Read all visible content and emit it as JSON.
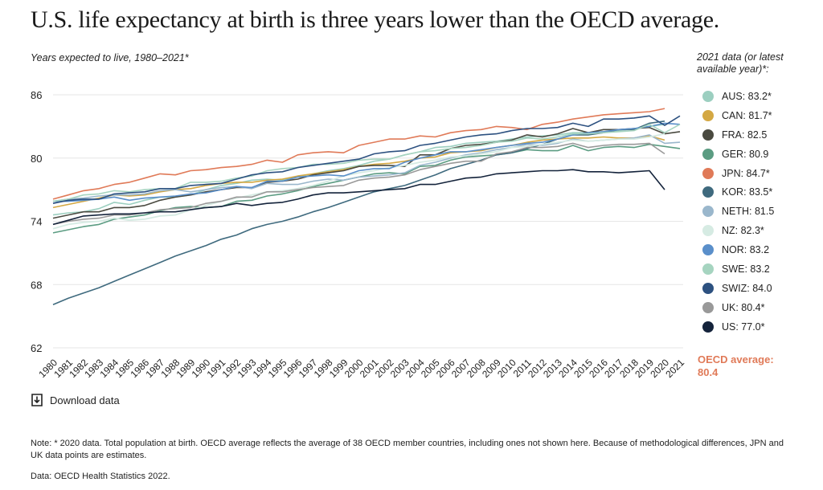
{
  "header": {
    "title": "U.S. life expectancy at birth is three years lower than the OECD average.",
    "subtitle": "Years expected to live, 1980–2021*",
    "legend_heading": "2021 data (or latest available year)*:"
  },
  "oecd_average": {
    "label": "OECD average:",
    "value": "80.4",
    "color": "#e07a58"
  },
  "download": {
    "label": "Download data",
    "icon": "download-icon"
  },
  "footer": {
    "note": "Note: * 2020 data. Total population at birth. OECD average reflects the average of 38 OECD member countries, including ones not shown here. Because of methodological differences, JPN and UK data points are estimates.",
    "source": "Data: OECD Health Statistics 2022."
  },
  "chart_data": {
    "type": "line",
    "x": [
      1980,
      1981,
      1982,
      1983,
      1984,
      1985,
      1986,
      1987,
      1988,
      1989,
      1990,
      1991,
      1992,
      1993,
      1994,
      1995,
      1996,
      1997,
      1998,
      1999,
      2000,
      2001,
      2002,
      2003,
      2004,
      2005,
      2006,
      2007,
      2008,
      2009,
      2010,
      2011,
      2012,
      2013,
      2014,
      2015,
      2016,
      2017,
      2018,
      2019,
      2020,
      2021
    ],
    "yticks": [
      62,
      68,
      74,
      80,
      86
    ],
    "ylim": [
      62,
      86.5
    ],
    "xlim": [
      1980,
      2021
    ],
    "grid": true,
    "legend_position": "right",
    "series": [
      {
        "name": "AUS: 83.2*",
        "color": "#9ccfc0",
        "values": [
          74.6,
          74.8,
          74.9,
          75.2,
          75.8,
          75.6,
          76.0,
          76.3,
          76.3,
          76.5,
          77.0,
          77.4,
          77.6,
          77.9,
          78.0,
          77.9,
          78.2,
          78.5,
          78.8,
          79.0,
          79.3,
          79.7,
          79.9,
          80.3,
          80.6,
          81.0,
          81.1,
          81.4,
          81.5,
          81.6,
          81.8,
          82.0,
          82.1,
          82.2,
          82.4,
          82.4,
          82.5,
          82.6,
          82.8,
          83.0,
          83.2,
          null
        ]
      },
      {
        "name": "CAN: 81.7*",
        "color": "#d4a843",
        "values": [
          75.3,
          75.6,
          75.9,
          76.2,
          76.5,
          76.4,
          76.5,
          76.8,
          77.0,
          77.1,
          77.4,
          77.6,
          77.7,
          77.7,
          77.9,
          78.0,
          78.3,
          78.5,
          78.7,
          78.9,
          79.2,
          79.4,
          79.5,
          79.7,
          80.0,
          80.1,
          80.5,
          80.6,
          80.7,
          81.0,
          81.2,
          81.5,
          81.7,
          81.8,
          81.9,
          81.9,
          82.0,
          81.9,
          81.9,
          82.1,
          81.7,
          null
        ]
      },
      {
        "name": "FRA: 82.5",
        "color": "#4a4a40",
        "values": [
          74.3,
          74.6,
          74.9,
          74.9,
          75.3,
          75.3,
          75.5,
          76.0,
          76.3,
          76.5,
          76.8,
          77.0,
          77.2,
          77.2,
          77.7,
          77.8,
          78.0,
          78.4,
          78.6,
          78.8,
          79.2,
          79.3,
          79.3,
          79.2,
          80.3,
          80.3,
          80.9,
          81.2,
          81.3,
          81.5,
          81.7,
          82.2,
          82.0,
          82.3,
          82.8,
          82.4,
          82.7,
          82.7,
          82.8,
          82.9,
          82.3,
          82.5
        ]
      },
      {
        "name": "GER: 80.9",
        "color": "#5b9c82",
        "values": [
          72.9,
          73.2,
          73.5,
          73.7,
          74.2,
          74.4,
          74.6,
          75.0,
          75.3,
          75.4,
          75.3,
          75.4,
          75.9,
          76.0,
          76.4,
          76.6,
          76.9,
          77.3,
          77.6,
          77.9,
          78.2,
          78.5,
          78.6,
          78.5,
          79.2,
          79.3,
          79.8,
          80.1,
          80.2,
          80.3,
          80.5,
          80.8,
          80.7,
          80.7,
          81.2,
          80.7,
          81.0,
          81.1,
          81.0,
          81.3,
          81.1,
          80.9
        ]
      },
      {
        "name": "JPN: 84.7*",
        "color": "#e07a58",
        "values": [
          76.1,
          76.5,
          76.9,
          77.1,
          77.5,
          77.7,
          78.1,
          78.5,
          78.4,
          78.8,
          78.9,
          79.1,
          79.2,
          79.4,
          79.8,
          79.6,
          80.3,
          80.5,
          80.6,
          80.5,
          81.2,
          81.5,
          81.8,
          81.8,
          82.1,
          82.0,
          82.4,
          82.6,
          82.7,
          83.0,
          82.9,
          82.7,
          83.2,
          83.4,
          83.7,
          83.9,
          84.1,
          84.2,
          84.3,
          84.4,
          84.7,
          null
        ]
      },
      {
        "name": "KOR: 83.5*",
        "color": "#3f6a7e",
        "values": [
          66.1,
          66.7,
          67.2,
          67.7,
          68.3,
          68.9,
          69.5,
          70.1,
          70.7,
          71.2,
          71.7,
          72.3,
          72.7,
          73.3,
          73.7,
          74.0,
          74.4,
          74.9,
          75.3,
          75.8,
          76.3,
          76.8,
          77.1,
          77.4,
          77.9,
          78.4,
          79.0,
          79.4,
          79.8,
          80.3,
          80.5,
          80.9,
          81.3,
          81.8,
          82.2,
          82.2,
          82.4,
          82.7,
          82.7,
          83.3,
          83.5,
          null
        ]
      },
      {
        "name": "NETH: 81.5",
        "color": "#9ab7cc",
        "values": [
          75.9,
          76.1,
          76.2,
          76.4,
          76.5,
          76.5,
          76.6,
          76.9,
          77.0,
          76.8,
          77.0,
          77.2,
          77.3,
          77.1,
          77.6,
          77.5,
          77.5,
          77.8,
          78.0,
          77.9,
          78.2,
          78.3,
          78.4,
          78.6,
          79.3,
          79.6,
          80.0,
          80.3,
          80.5,
          80.8,
          81.0,
          81.3,
          81.2,
          81.4,
          81.8,
          81.6,
          81.7,
          81.8,
          81.9,
          82.2,
          81.4,
          81.5
        ]
      },
      {
        "name": "NZ: 82.3*",
        "color": "#d6ebe3",
        "values": [
          73.3,
          73.7,
          73.9,
          74.0,
          74.3,
          74.1,
          74.2,
          74.5,
          74.6,
          75.1,
          75.5,
          75.9,
          76.2,
          76.5,
          76.8,
          76.9,
          77.1,
          77.4,
          77.8,
          78.3,
          78.6,
          78.8,
          79.1,
          79.3,
          79.6,
          79.8,
          80.1,
          80.2,
          80.4,
          80.6,
          81.0,
          81.1,
          81.3,
          81.5,
          81.7,
          81.6,
          81.7,
          81.8,
          81.8,
          82.0,
          82.3,
          null
        ]
      },
      {
        "name": "NOR: 83.2",
        "color": "#5a8fca",
        "values": [
          75.9,
          75.9,
          76.0,
          76.1,
          76.3,
          76.0,
          76.2,
          76.3,
          76.4,
          76.6,
          76.7,
          77.0,
          77.3,
          77.2,
          77.8,
          77.8,
          78.2,
          78.3,
          78.4,
          78.3,
          78.8,
          79.0,
          79.0,
          79.6,
          80.0,
          80.3,
          80.6,
          80.6,
          80.8,
          81.0,
          81.2,
          81.4,
          81.5,
          81.8,
          82.2,
          82.4,
          82.5,
          82.7,
          82.8,
          83.0,
          83.3,
          83.2
        ]
      },
      {
        "name": "SWE: 83.2",
        "color": "#a6d4c0",
        "values": [
          75.9,
          76.1,
          76.5,
          76.6,
          76.9,
          76.8,
          77.0,
          77.1,
          77.1,
          77.7,
          77.7,
          77.8,
          78.1,
          78.3,
          78.8,
          79.0,
          79.1,
          79.4,
          79.4,
          79.5,
          79.8,
          79.9,
          79.9,
          80.3,
          80.6,
          80.7,
          80.9,
          81.0,
          81.2,
          81.5,
          81.6,
          81.9,
          81.8,
          82.0,
          82.3,
          82.3,
          82.4,
          82.5,
          82.6,
          83.2,
          82.4,
          83.2
        ]
      },
      {
        "name": "SWIZ: 84.0",
        "color": "#2d5180",
        "values": [
          75.7,
          76.0,
          76.1,
          76.1,
          76.6,
          76.7,
          76.8,
          77.1,
          77.1,
          77.4,
          77.5,
          77.6,
          78.0,
          78.4,
          78.6,
          78.7,
          79.1,
          79.3,
          79.5,
          79.7,
          79.9,
          80.4,
          80.6,
          80.7,
          81.2,
          81.4,
          81.7,
          82.0,
          82.2,
          82.3,
          82.6,
          82.8,
          82.8,
          82.9,
          83.3,
          83.0,
          83.7,
          83.7,
          83.8,
          84.0,
          83.1,
          84.0
        ]
      },
      {
        "name": "UK: 80.4*",
        "color": "#999999",
        "values": [
          73.7,
          74.0,
          74.2,
          74.3,
          74.6,
          74.6,
          74.8,
          75.1,
          75.2,
          75.3,
          75.7,
          75.9,
          76.3,
          76.3,
          76.8,
          76.8,
          77.0,
          77.2,
          77.3,
          77.4,
          77.9,
          78.1,
          78.2,
          78.4,
          78.9,
          79.2,
          79.5,
          79.7,
          79.7,
          80.4,
          80.6,
          81.0,
          81.0,
          81.1,
          81.4,
          81.0,
          81.2,
          81.3,
          81.3,
          81.4,
          80.4,
          null
        ]
      },
      {
        "name": "US: 77.0*",
        "color": "#14233b",
        "values": [
          73.7,
          74.1,
          74.5,
          74.6,
          74.7,
          74.7,
          74.8,
          74.9,
          74.9,
          75.1,
          75.3,
          75.4,
          75.7,
          75.5,
          75.7,
          75.8,
          76.1,
          76.5,
          76.7,
          76.7,
          76.8,
          76.9,
          77.0,
          77.1,
          77.5,
          77.5,
          77.8,
          78.1,
          78.2,
          78.5,
          78.6,
          78.7,
          78.8,
          78.8,
          78.9,
          78.7,
          78.7,
          78.6,
          78.7,
          78.8,
          77.0,
          null
        ]
      }
    ]
  }
}
